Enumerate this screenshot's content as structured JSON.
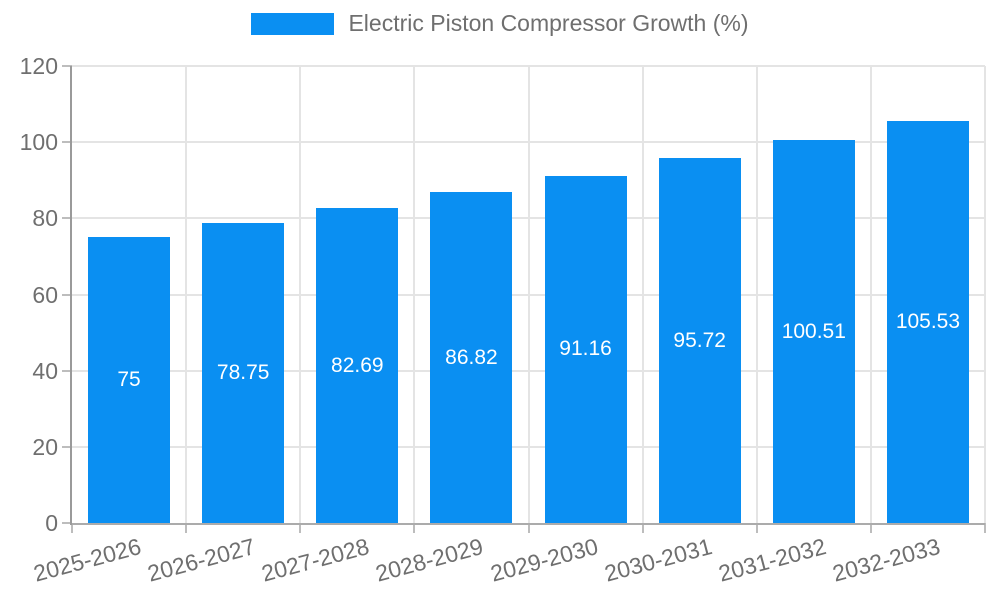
{
  "chart_data": {
    "type": "bar",
    "title": "Electric Piston Compressor Growth (%)",
    "categories": [
      "2025-2026",
      "2026-2027",
      "2027-2028",
      "2028-2029",
      "2029-2030",
      "2030-2031",
      "2031-2032",
      "2032-2033"
    ],
    "series": [
      {
        "name": "Electric Piston Compressor Growth (%)",
        "values": [
          75,
          78.75,
          82.69,
          86.82,
          91.16,
          95.72,
          100.51,
          105.53
        ]
      }
    ],
    "value_labels": [
      "75",
      "78.75",
      "82.69",
      "86.82",
      "91.16",
      "95.72",
      "100.51",
      "105.53"
    ],
    "xlabel": "",
    "ylabel": "",
    "ylim": [
      0,
      120
    ],
    "yticks": [
      0,
      20,
      40,
      60,
      80,
      100,
      120
    ],
    "grid": true,
    "legend_position": "top-center",
    "x_label_rotation_deg": -15,
    "colors": {
      "bar": "#0a8ff2",
      "value_label": "#ffffff",
      "axis_text": "#6f6f6f",
      "grid_line": "#e4e4e4",
      "y_axis_line": "#9a9a9a",
      "x_axis_line": "#ababab",
      "tick_mark": "#bdbdbd"
    }
  }
}
